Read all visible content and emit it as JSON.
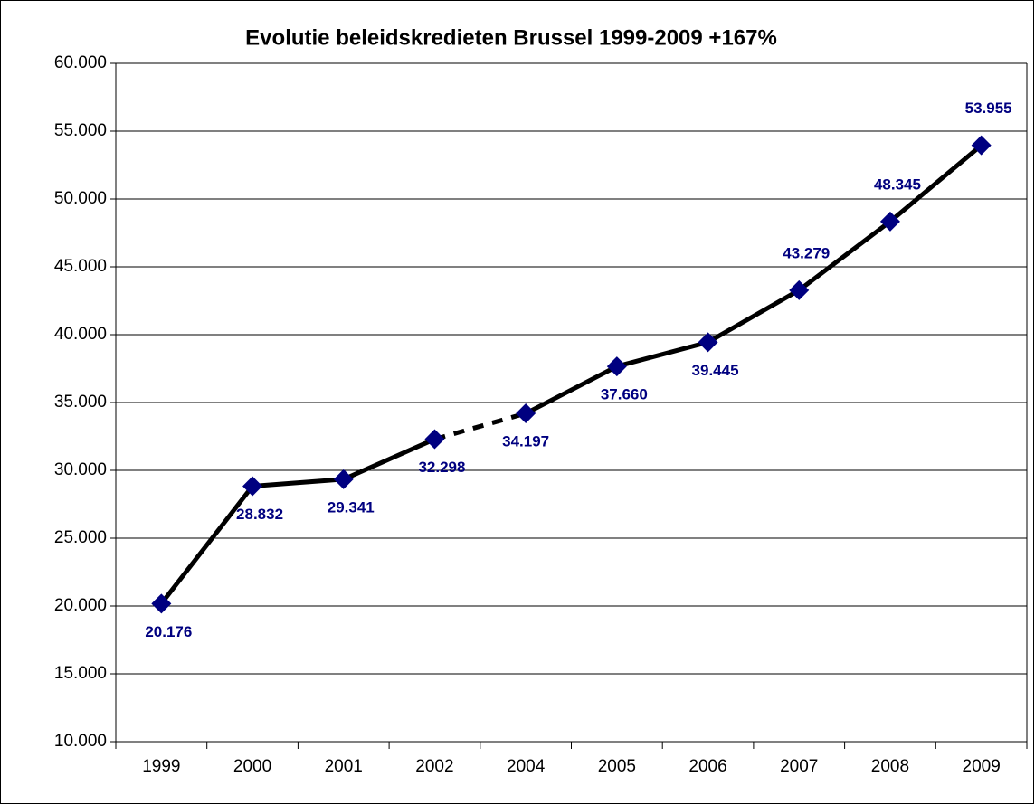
{
  "chart_data": {
    "type": "line",
    "title": "Evolutie beleidskredieten Brussel 1999-2009  +167%",
    "categories": [
      "1999",
      "2000",
      "2001",
      "2002",
      "2004",
      "2005",
      "2006",
      "2007",
      "2008",
      "2009"
    ],
    "series": [
      {
        "name": "beleidskredieten",
        "color": "#000000",
        "marker_color": "#000080",
        "values": [
          20176,
          28832,
          29341,
          32298,
          34197,
          37660,
          39445,
          43279,
          48345,
          53955
        ],
        "value_labels": [
          "20.176",
          "28.832",
          "29.341",
          "32.298",
          "34.197",
          "37.660",
          "39.445",
          "43.279",
          "48.345",
          "53.955"
        ]
      }
    ],
    "dashed_segments": [
      3
    ],
    "ylim": [
      10000,
      60000
    ],
    "yticks": [
      {
        "value": 10000,
        "label": "10.000"
      },
      {
        "value": 15000,
        "label": "15.000"
      },
      {
        "value": 20000,
        "label": "20.000"
      },
      {
        "value": 25000,
        "label": "25.000"
      },
      {
        "value": 30000,
        "label": "30.000"
      },
      {
        "value": 35000,
        "label": "35.000"
      },
      {
        "value": 40000,
        "label": "40.000"
      },
      {
        "value": 45000,
        "label": "45.000"
      },
      {
        "value": 50000,
        "label": "50.000"
      },
      {
        "value": 55000,
        "label": "55.000"
      },
      {
        "value": 60000,
        "label": "60.000"
      }
    ],
    "grid": true
  }
}
